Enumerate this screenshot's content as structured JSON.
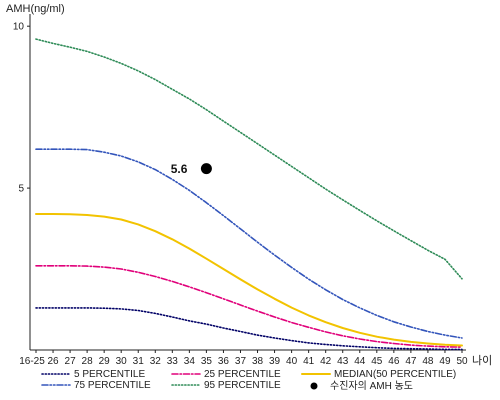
{
  "chart_data": {
    "type": "line",
    "ylabel": "AMH(ng/ml)",
    "xlabel": "나이",
    "ylim": [
      0,
      10.5
    ],
    "yticks": [
      "5",
      "10"
    ],
    "categories": [
      "16-25",
      "26",
      "27",
      "28",
      "29",
      "30",
      "31",
      "32",
      "33",
      "34",
      "35",
      "36",
      "37",
      "38",
      "39",
      "40",
      "41",
      "42",
      "43",
      "44",
      "45",
      "46",
      "47",
      "48",
      "49",
      "50"
    ],
    "series": [
      {
        "name": "5 PERCENTILE",
        "color": "#000066",
        "dash": "dot",
        "values": [
          1.3,
          1.3,
          1.3,
          1.3,
          1.29,
          1.27,
          1.22,
          1.13,
          1.02,
          0.9,
          0.8,
          0.68,
          0.57,
          0.46,
          0.37,
          0.29,
          0.22,
          0.17,
          0.13,
          0.1,
          0.07,
          0.05,
          0.04,
          0.03,
          0.02,
          0.02
        ]
      },
      {
        "name": "25 PERCENTILE",
        "color": "#e0007a",
        "dash": "dashdot",
        "values": [
          2.6,
          2.6,
          2.6,
          2.59,
          2.56,
          2.5,
          2.4,
          2.27,
          2.12,
          1.95,
          1.77,
          1.58,
          1.39,
          1.2,
          1.02,
          0.85,
          0.7,
          0.56,
          0.44,
          0.34,
          0.26,
          0.2,
          0.15,
          0.12,
          0.1,
          0.09
        ]
      },
      {
        "name": "MEDIAN(50 PERCENTILE)",
        "color": "#f2c300",
        "dash": "solid",
        "values": [
          4.2,
          4.2,
          4.19,
          4.17,
          4.12,
          4.03,
          3.88,
          3.67,
          3.42,
          3.13,
          2.82,
          2.5,
          2.18,
          1.87,
          1.58,
          1.31,
          1.07,
          0.86,
          0.68,
          0.53,
          0.41,
          0.32,
          0.25,
          0.2,
          0.16,
          0.14
        ]
      },
      {
        "name": "75 PERCENTILE",
        "color": "#3355bb",
        "dash": "dashdotdot",
        "values": [
          6.2,
          6.2,
          6.2,
          6.19,
          6.11,
          5.99,
          5.81,
          5.57,
          5.27,
          4.93,
          4.55,
          4.15,
          3.74,
          3.33,
          2.93,
          2.55,
          2.19,
          1.86,
          1.56,
          1.3,
          1.07,
          0.87,
          0.71,
          0.57,
          0.46,
          0.37
        ]
      },
      {
        "name": "95 PERCENTILE",
        "color": "#2e8b57",
        "dash": "dot",
        "values": [
          9.6,
          9.47,
          9.35,
          9.22,
          9.05,
          8.85,
          8.62,
          8.35,
          8.05,
          7.75,
          7.42,
          7.07,
          6.72,
          6.37,
          6.02,
          5.67,
          5.32,
          4.97,
          4.64,
          4.31,
          3.99,
          3.68,
          3.38,
          3.08,
          2.8,
          2.2
        ]
      }
    ],
    "patient": {
      "label": "5.6",
      "x": "35",
      "y": 5.6,
      "legend": "수진자의 AMH 농도",
      "color": "#000000"
    },
    "grid": false,
    "legend": "bottom"
  }
}
